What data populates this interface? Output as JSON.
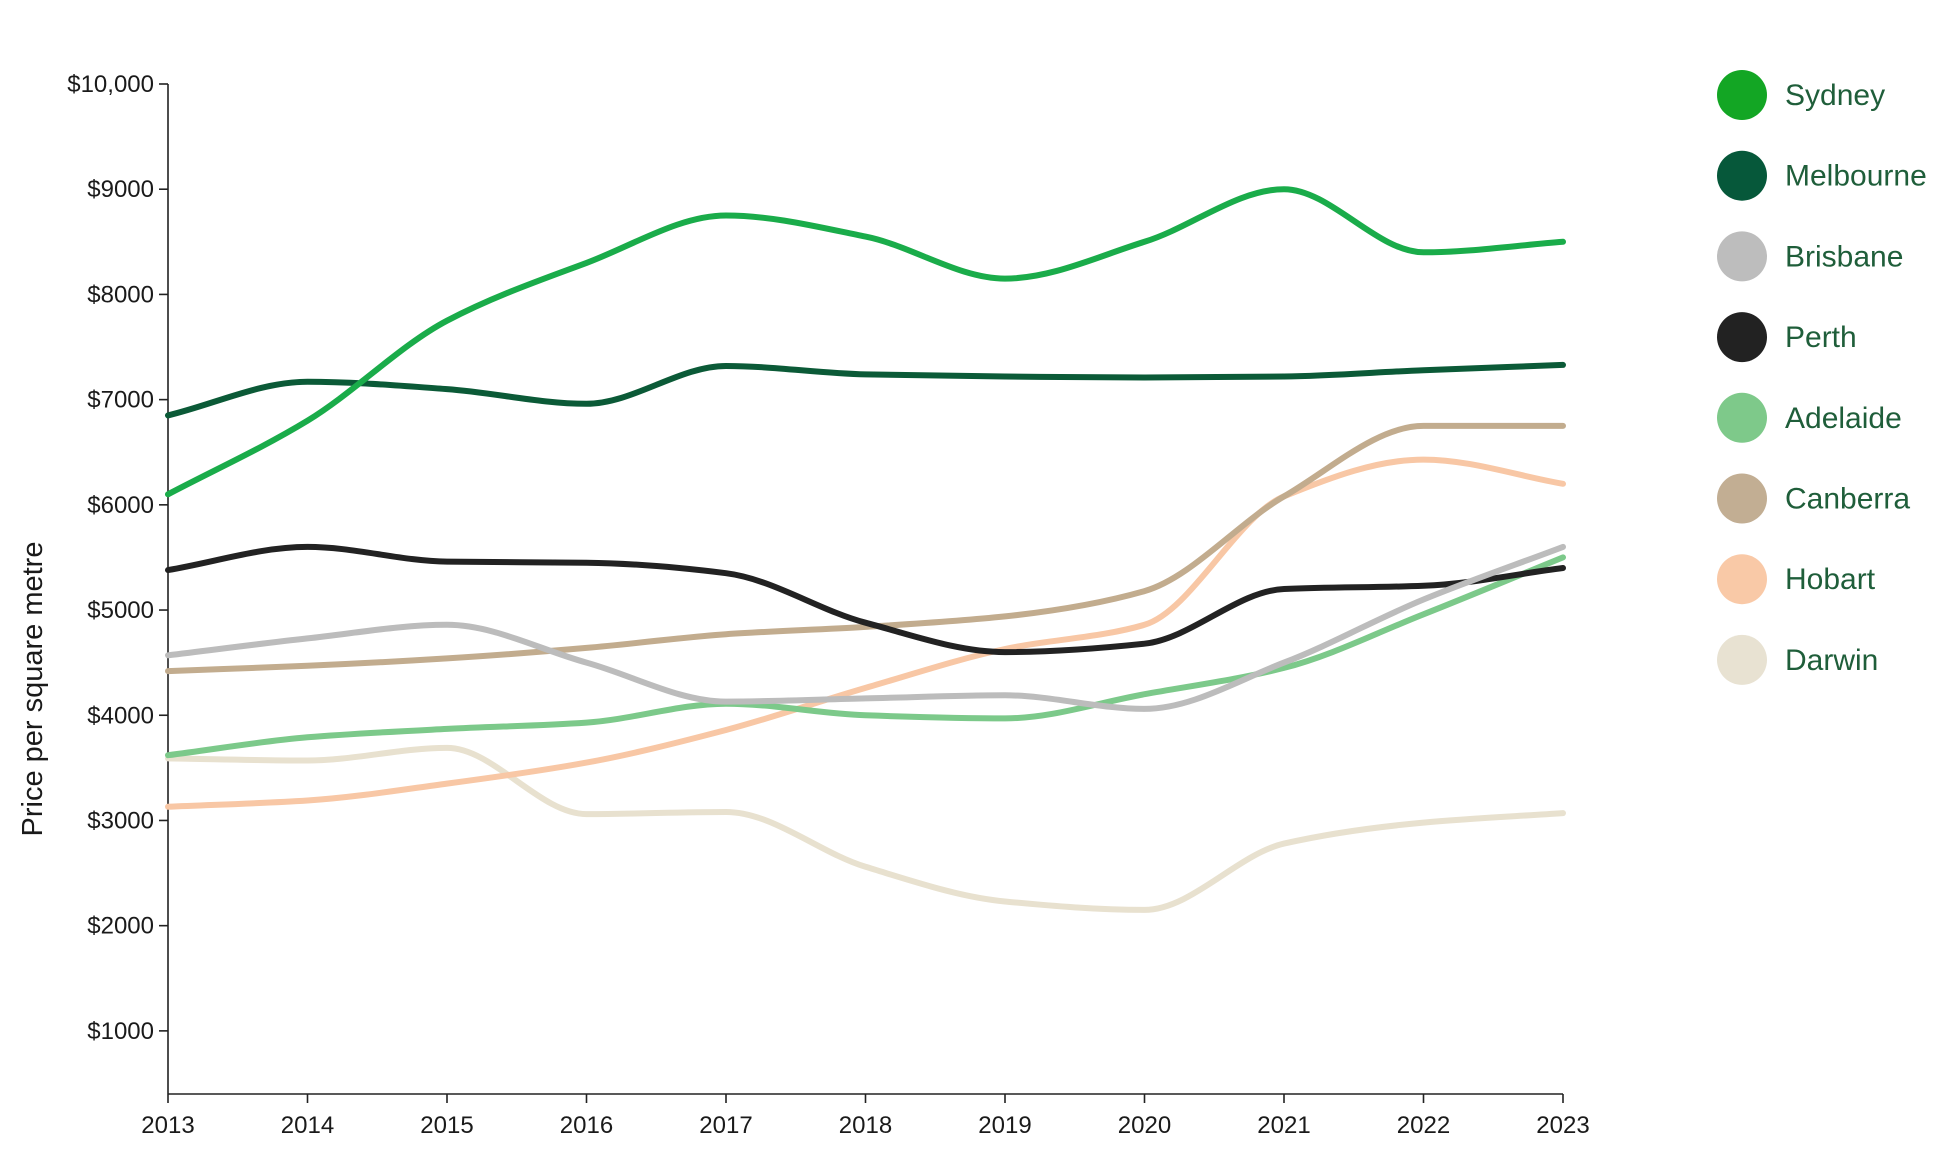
{
  "chart_data": {
    "type": "line",
    "title": "",
    "xlabel": "",
    "ylabel": "Price per square metre",
    "x": [
      2013,
      2014,
      2015,
      2016,
      2017,
      2018,
      2019,
      2020,
      2021,
      2022,
      2023
    ],
    "x_tick_labels": [
      "2013",
      "2014",
      "2015",
      "2016",
      "2017",
      "2018",
      "2019",
      "2020",
      "2021",
      "2022",
      "2023"
    ],
    "ylim": [
      400,
      10000
    ],
    "y_ticks": [
      1000,
      2000,
      3000,
      4000,
      5000,
      6000,
      7000,
      8000,
      9000,
      10000
    ],
    "y_tick_labels": [
      "$1000",
      "$2000",
      "$3000",
      "$4000",
      "$5000",
      "$6000",
      "$7000",
      "$8000",
      "$9000",
      "$10,000"
    ],
    "grid": false,
    "legend_position": "right",
    "legend_text_color": "#1f5e3a",
    "series": [
      {
        "name": "Sydney",
        "color": "#1aac4a",
        "marker_color": "#13a624",
        "values": [
          6100,
          6800,
          7750,
          8300,
          8750,
          8550,
          8150,
          8500,
          9000,
          8400,
          8500
        ]
      },
      {
        "name": "Melbourne",
        "color": "#0b5a37",
        "marker_color": "#06583a",
        "values": [
          6850,
          7170,
          7100,
          6960,
          7320,
          7240,
          7220,
          7210,
          7220,
          7280,
          7330
        ]
      },
      {
        "name": "Brisbane",
        "color": "#bcbcbc",
        "marker_color": "#bdbdbd",
        "values": [
          4570,
          4730,
          4860,
          4500,
          4130,
          4160,
          4190,
          4060,
          4500,
          5100,
          5600
        ]
      },
      {
        "name": "Perth",
        "color": "#222222",
        "marker_color": "#222222",
        "values": [
          5380,
          5600,
          5460,
          5450,
          5350,
          4880,
          4600,
          4680,
          5200,
          5230,
          5400
        ]
      },
      {
        "name": "Adelaide",
        "color": "#7cc98a",
        "marker_color": "#7ec98a",
        "values": [
          3620,
          3790,
          3870,
          3930,
          4110,
          4000,
          3970,
          4200,
          4450,
          4960,
          5500
        ]
      },
      {
        "name": "Canberra",
        "color": "#c2ac8e",
        "marker_color": "#c2ae93",
        "values": [
          4420,
          4470,
          4540,
          4640,
          4770,
          4840,
          4940,
          5180,
          6080,
          6750,
          6750
        ]
      },
      {
        "name": "Hobart",
        "color": "#f8c7a5",
        "marker_color": "#f9c9a7",
        "values": [
          3130,
          3190,
          3350,
          3550,
          3860,
          4260,
          4630,
          4860,
          6080,
          6430,
          6200
        ]
      },
      {
        "name": "Darwin",
        "color": "#e8e1cf",
        "marker_color": "#e8e2d2",
        "values": [
          3590,
          3570,
          3690,
          3060,
          3080,
          2560,
          2230,
          2150,
          2780,
          2980,
          3070
        ]
      }
    ]
  }
}
